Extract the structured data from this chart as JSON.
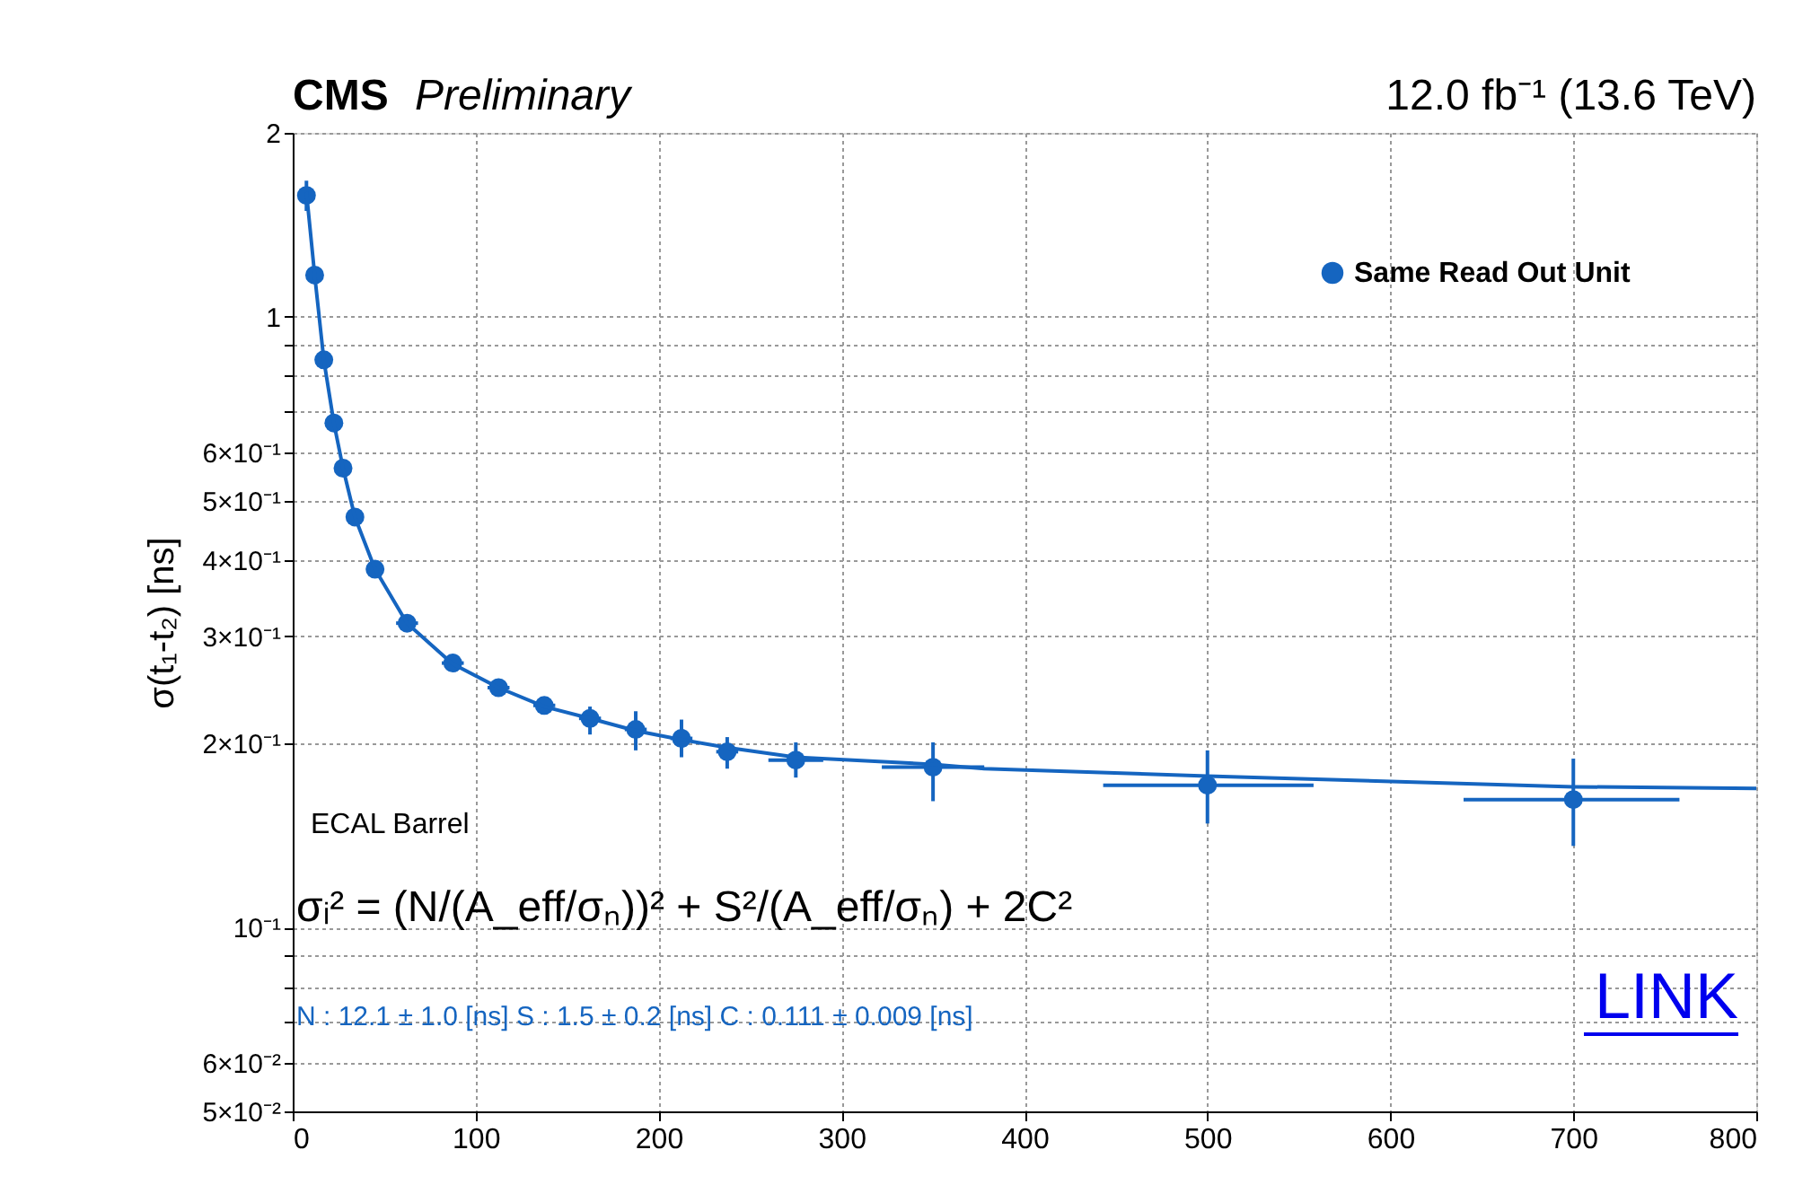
{
  "chart_data": {
    "type": "scatter",
    "title": "CMS Preliminary",
    "subtitle": "12.0 fb⁻¹ (13.6 TeV)",
    "ylabel": "σ(t₁-t₂) [ns]",
    "annotations": [
      "ECAL Barrel",
      "σᵢ² = (N/(A_eff/σₙ))² + S²/(A_eff/σₙ) + 2C²",
      "N : 12.1 ± 1.0 [ns]   S : 1.5 ± 0.2 [ns]   C : 0.111 ± 0.009 [ns]",
      "LINK"
    ],
    "x": [
      7.5,
      12,
      17,
      22.5,
      27.5,
      34,
      45,
      62.5,
      87.5,
      112.5,
      137.5,
      162.5,
      187.5,
      212.5,
      237.5,
      275,
      350,
      500,
      700
    ],
    "series": [
      {
        "name": "Same Read Out Unit",
        "color": "#1565c0",
        "values": [
          1.58,
          1.17,
          0.85,
          0.67,
          0.565,
          0.47,
          0.386,
          0.315,
          0.271,
          0.247,
          0.231,
          0.22,
          0.211,
          0.204,
          0.194,
          0.188,
          0.183,
          0.171,
          0.162
        ],
        "errors": [
          [
            1.49,
            1.67
          ],
          null,
          null,
          null,
          null,
          null,
          null,
          null,
          null,
          null,
          null,
          [
            0.207,
            0.23
          ],
          [
            0.195,
            0.226
          ],
          [
            0.19,
            0.219
          ],
          [
            0.182,
            0.205
          ],
          [
            0.176,
            0.201
          ],
          [
            0.161,
            0.201
          ],
          [
            0.148,
            0.195
          ],
          [
            0.136,
            0.189
          ]
        ],
        "xerrors": [
          null,
          null,
          null,
          null,
          null,
          null,
          null,
          6,
          6,
          6,
          6,
          6,
          6,
          6,
          6,
          15,
          28,
          [
            443,
            558
          ],
          [
            640,
            758
          ]
        ]
      },
      {
        "type": "line",
        "marker": "none",
        "color": "#1565c0",
        "x": [
          7.5,
          12,
          17,
          22.5,
          27.5,
          34,
          45,
          62.5,
          87.5,
          112.5,
          137.5,
          162.5,
          187.5,
          212.5,
          237.5,
          275,
          350,
          378,
          500,
          700,
          800
        ],
        "values": [
          1.6,
          1.17,
          0.85,
          0.67,
          0.565,
          0.47,
          0.386,
          0.315,
          0.27,
          0.247,
          0.23,
          0.22,
          0.21,
          0.203,
          0.197,
          0.19,
          0.185,
          0.182,
          0.177,
          0.17,
          0.169
        ]
      }
    ],
    "xlim": [
      0,
      800
    ],
    "xticks": [
      0,
      100,
      200,
      300,
      400,
      500,
      600,
      700,
      800
    ],
    "ylim": [
      0.05,
      2
    ],
    "log": true,
    "yticks": [
      {
        "value": 0.05,
        "label": "5×10⁻²"
      },
      {
        "value": 0.06,
        "label": "6×10⁻²"
      },
      {
        "value": 0.07,
        "label": null
      },
      {
        "value": 0.08,
        "label": null
      },
      {
        "value": 0.09,
        "label": null
      },
      {
        "value": 0.1,
        "label": "10⁻¹"
      },
      {
        "value": 0.2,
        "label": "2×10⁻¹"
      },
      {
        "value": 0.3,
        "label": "3×10⁻¹"
      },
      {
        "value": 0.4,
        "label": "4×10⁻¹"
      },
      {
        "value": 0.5,
        "label": "5×10⁻¹"
      },
      {
        "value": 0.6,
        "label": "6×10⁻¹"
      },
      {
        "value": 0.7,
        "label": null
      },
      {
        "value": 0.8,
        "label": null
      },
      {
        "value": 0.9,
        "label": null
      },
      {
        "value": 1,
        "label": "1"
      },
      {
        "value": 2,
        "label": "2"
      }
    ],
    "grid": true,
    "legend": "top right",
    "marker": "circle",
    "line_style": "solid"
  }
}
